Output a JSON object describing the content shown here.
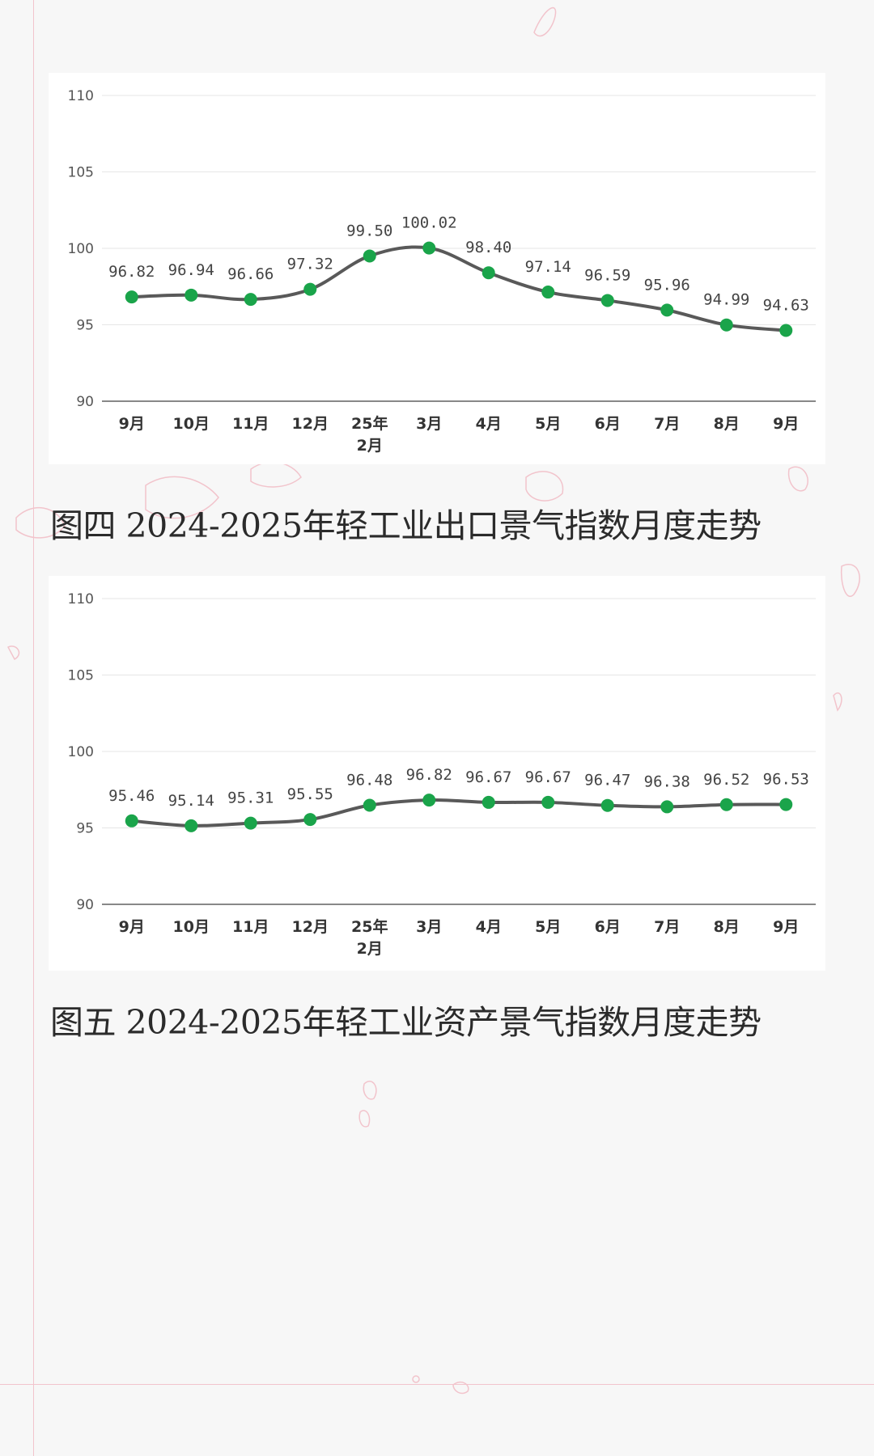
{
  "colors": {
    "line": "#595959",
    "marker": "#1aa44a",
    "grid": "#e6e6e6",
    "axis": "#404040",
    "decor": "#f2c4cc"
  },
  "chart_data": [
    {
      "type": "line",
      "title": "",
      "xlabel": "",
      "ylabel": "",
      "categories": [
        "9月",
        "10月",
        "11月",
        "12月",
        "25年\n2月",
        "3月",
        "4月",
        "5月",
        "6月",
        "7月",
        "8月",
        "9月"
      ],
      "values": [
        96.82,
        96.94,
        96.66,
        97.32,
        99.5,
        100.02,
        98.4,
        97.14,
        96.59,
        95.96,
        94.99,
        94.63
      ],
      "labels": [
        "96.82",
        "96.94",
        "96.66",
        "97.32",
        "99.50",
        "100.02",
        "98.40",
        "97.14",
        "96.59",
        "95.96",
        "94.99",
        "94.63"
      ],
      "ylim": [
        90,
        110
      ],
      "yticks": [
        "110",
        "105",
        "100",
        "95",
        "90"
      ],
      "grid": true,
      "legend": "none"
    },
    {
      "type": "line",
      "title": "",
      "xlabel": "",
      "ylabel": "",
      "categories": [
        "9月",
        "10月",
        "11月",
        "12月",
        "25年\n2月",
        "3月",
        "4月",
        "5月",
        "6月",
        "7月",
        "8月",
        "9月"
      ],
      "values": [
        95.46,
        95.14,
        95.31,
        95.55,
        96.48,
        96.82,
        96.67,
        96.67,
        96.47,
        96.38,
        96.52,
        96.53
      ],
      "labels": [
        "95.46",
        "95.14",
        "95.31",
        "95.55",
        "96.48",
        "96.82",
        "96.67",
        "96.67",
        "96.47",
        "96.38",
        "96.52",
        "96.53"
      ],
      "ylim": [
        90,
        110
      ],
      "yticks": [
        "110",
        "105",
        "100",
        "95",
        "90"
      ],
      "grid": true,
      "legend": "none"
    }
  ],
  "captions": {
    "fig4": "图四 2024-2025年轻工业出口景气指数月度走势",
    "fig5": "图五 2024-2025年轻工业资产景气指数月度走势"
  }
}
